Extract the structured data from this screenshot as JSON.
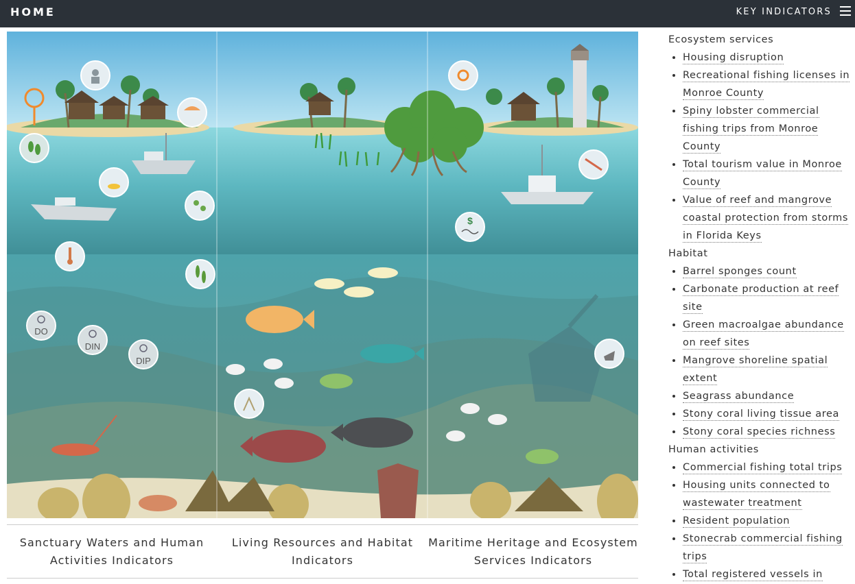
{
  "header": {
    "home_label": "HOME",
    "menu_label": "KEY INDICATORS"
  },
  "scene": {
    "icons": {
      "do": "DO",
      "din": "DIN",
      "dip": "DIP",
      "dollar": "$"
    }
  },
  "captions": [
    "Sanctuary Waters and Human Activities Indicators",
    "Living Resources and Habitat Indicators",
    "Maritime Heritage and Ecosystem Services Indicators"
  ],
  "sidebar": {
    "groups": [
      {
        "title": "Ecosystem services",
        "items": [
          "Housing disruption",
          "Recreational fishing licenses in Monroe County",
          "Spiny lobster commercial fishing trips from Monroe County",
          "Total tourism value in Monroe County",
          "Value of reef and mangrove coastal protection from storms in Florida Keys"
        ]
      },
      {
        "title": "Habitat",
        "items": [
          "Barrel sponges count",
          "Carbonate production at reef site",
          "Green macroalgae abundance on reef sites",
          "Mangrove shoreline spatial extent",
          "Seagrass abundance",
          "Stony coral living tissue area",
          "Stony coral species richness"
        ]
      },
      {
        "title": "Human activities",
        "items": [
          "Commercial fishing total trips",
          "Housing units connected to wastewater treatment",
          "Resident population",
          "Stonecrab commercial fishing trips",
          "Total registered vessels in"
        ]
      }
    ]
  },
  "colors": {
    "header_bg": "#2b3138",
    "sky_top": "#6fb9dc",
    "water_surface": "#7ed0d8",
    "water_deep": "#3f8f97",
    "sand": "#e8e2c8"
  }
}
